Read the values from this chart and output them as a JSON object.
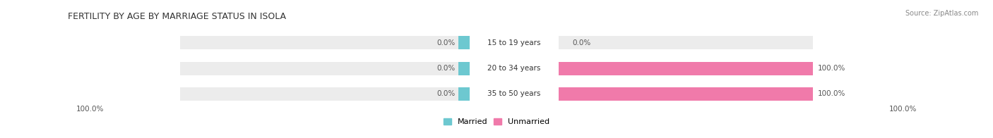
{
  "title": "FERTILITY BY AGE BY MARRIAGE STATUS IN ISOLA",
  "source": "Source: ZipAtlas.com",
  "categories": [
    "15 to 19 years",
    "20 to 34 years",
    "35 to 50 years"
  ],
  "married_values": [
    0.0,
    0.0,
    0.0
  ],
  "unmarried_values": [
    0.0,
    100.0,
    100.0
  ],
  "married_right_labels": [
    "0.0%",
    "0.0%",
    "0.0%"
  ],
  "unmarried_right_labels": [
    "0.0%",
    "100.0%",
    "100.0%"
  ],
  "bottom_left_label": "100.0%",
  "bottom_right_label": "100.0%",
  "married_color": "#6dc8d0",
  "unmarried_color": "#f07aaa",
  "bar_bg_color": "#ececec",
  "label_box_color": "#ffffff",
  "title_fontsize": 9,
  "bar_height": 0.52,
  "figsize": [
    14.06,
    1.96
  ],
  "dpi": 100
}
